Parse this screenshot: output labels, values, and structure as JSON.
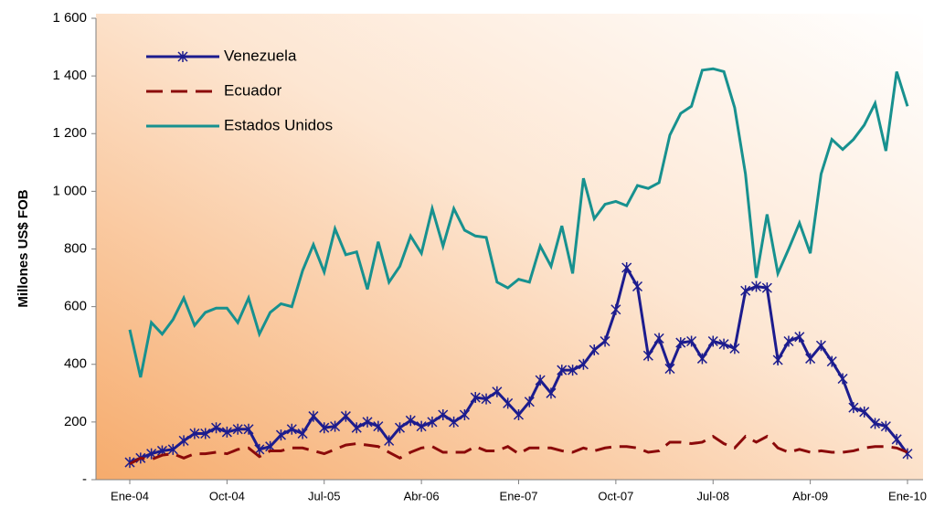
{
  "chart_data": {
    "type": "line",
    "ylabel": "Millones US$ FOB",
    "categories": [
      "Ene-04",
      null,
      null,
      null,
      null,
      null,
      null,
      null,
      null,
      "Oct-04",
      null,
      null,
      null,
      null,
      null,
      null,
      null,
      null,
      "Jul-05",
      null,
      null,
      null,
      null,
      null,
      null,
      null,
      null,
      "Abr-06",
      null,
      null,
      null,
      null,
      null,
      null,
      null,
      null,
      "Ene-07",
      null,
      null,
      null,
      null,
      null,
      null,
      null,
      null,
      "Oct-07",
      null,
      null,
      null,
      null,
      null,
      null,
      null,
      null,
      "Jul-08",
      null,
      null,
      null,
      null,
      null,
      null,
      null,
      null,
      "Abr-09",
      null,
      null,
      null,
      null,
      null,
      null,
      null,
      null,
      "Ene-10"
    ],
    "series": [
      {
        "name": "Venezuela",
        "color": "#1c1c8e",
        "line_style": "solid",
        "marker": "asterisk",
        "values": [
          60,
          75,
          90,
          100,
          105,
          135,
          160,
          160,
          180,
          165,
          175,
          175,
          105,
          115,
          155,
          175,
          160,
          220,
          180,
          185,
          220,
          180,
          200,
          185,
          135,
          180,
          205,
          185,
          200,
          225,
          200,
          225,
          285,
          280,
          305,
          265,
          225,
          270,
          345,
          300,
          380,
          380,
          400,
          450,
          480,
          590,
          735,
          670,
          430,
          490,
          385,
          475,
          480,
          420,
          480,
          470,
          455,
          655,
          670,
          665,
          415,
          480,
          495,
          420,
          465,
          410,
          350,
          250,
          235,
          195,
          185,
          140,
          90
        ]
      },
      {
        "name": "Ecuador",
        "color": "#8b0a0a",
        "line_style": "dashed",
        "marker": "none",
        "values": [
          55,
          75,
          70,
          85,
          90,
          75,
          90,
          90,
          95,
          90,
          105,
          110,
          80,
          100,
          100,
          110,
          110,
          100,
          90,
          105,
          120,
          125,
          120,
          115,
          95,
          75,
          95,
          110,
          115,
          95,
          95,
          95,
          115,
          100,
          100,
          115,
          90,
          110,
          110,
          110,
          100,
          95,
          110,
          100,
          110,
          115,
          115,
          110,
          95,
          100,
          130,
          130,
          125,
          130,
          150,
          125,
          110,
          150,
          130,
          150,
          110,
          95,
          105,
          95,
          100,
          95,
          95,
          100,
          110,
          115,
          115,
          110,
          95
        ]
      },
      {
        "name": "Estados Unidos",
        "color": "#17918f",
        "line_style": "solid",
        "marker": "none",
        "values": [
          520,
          355,
          545,
          505,
          555,
          630,
          535,
          580,
          595,
          595,
          545,
          630,
          505,
          580,
          610,
          600,
          725,
          815,
          720,
          870,
          780,
          790,
          660,
          825,
          685,
          740,
          845,
          785,
          940,
          810,
          940,
          865,
          845,
          840,
          685,
          665,
          695,
          685,
          810,
          740,
          880,
          715,
          1045,
          905,
          955,
          965,
          950,
          1020,
          1010,
          1030,
          1195,
          1270,
          1295,
          1420,
          1425,
          1415,
          1290,
          1060,
          700,
          920,
          715,
          800,
          890,
          785,
          1060,
          1180,
          1145,
          1180,
          1230,
          1305,
          1140,
          1415,
          1295
        ]
      }
    ],
    "ylim": [
      0,
      1600
    ],
    "yticks": [
      {
        "value": 0,
        "label": "-"
      },
      200,
      400,
      600,
      800,
      {
        "value": 1000,
        "label": "1 000"
      },
      {
        "value": 1200,
        "label": "1 200"
      },
      {
        "value": 1400,
        "label": "1 400"
      },
      {
        "value": 1600,
        "label": "1 600"
      }
    ],
    "grid": false,
    "legend": "upper left"
  }
}
